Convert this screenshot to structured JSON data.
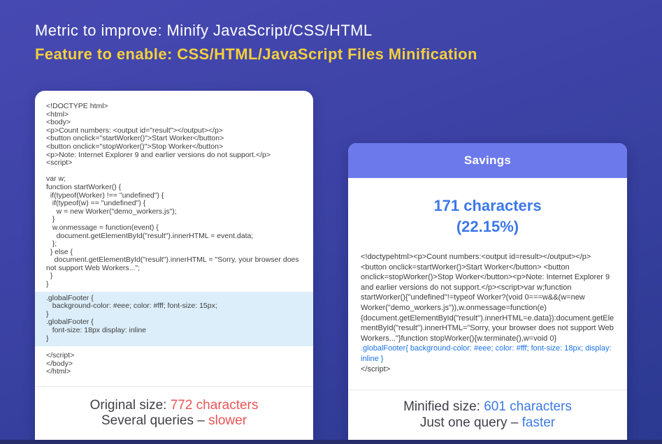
{
  "header": {
    "metric_line": "Metric to improve: Minify JavaScript/CSS/HTML",
    "feature_line": "Feature to enable: CSS/HTML/JavaScript Files Minification"
  },
  "original_card": {
    "code_main": "<!DOCTYPE html>\n<html>\n<body>\n<p>Count numbers: <output id=\"result\"></output></p>\n<button onclick=\"startWorker()\">Start Worker</button>\n<button onclick=\"stopWorker()\">Stop Worker</button>\n<p>Note: Internet Explorer 9 and earlier versions do not support.</p>\n<script>\n\nvar w;\nfunction startWorker() {\n  if(typeof(Worker) !== \"undefined\") {\n   if(typeof(w) == \"undefined\") {\n     w = new Worker(\"demo_workers.js\");\n   }\n   w.onmessage = function(event) {\n     document.getElementById(\"result\").innerHTML = event.data;\n   };\n  } else {\n    document.getElementById(\"result\").innerHTML = \"Sorry, your browser does not support Web Workers...\";\n  }\n}",
    "code_css_highlight": ".globalFooter {\n   background-color: #eee; color: #fff; font-size: 15px;\n}\n.globalFooter {\n   font-size: 18px display: inline\n}",
    "code_closing": "</script>\n</body>\n</html>",
    "footer": {
      "size_label": "Original size: ",
      "size_value": "772 characters",
      "query_label": "Several queries – ",
      "query_value": "slower"
    }
  },
  "savings_card": {
    "header_label": "Savings",
    "amount": "171 characters",
    "percent": "(22.15%)",
    "code_minified": "<!doctypehtml><p>Count numbers:<output id=result></output></p><button onclick=startWorker()>Start Worker</button> <button onclick=stopWorker()>Stop Worker</button><p>Note: Internet Explorer 9 and earlier versions do not support.</p><script>var w;function startWorker(){\"undefined\"!=typeof Worker?(void 0===w&&(w=new Worker(\"demo_workers.js\")),w.onmessage=function(e){document.getElementById(\"result\").innerHTML=e.data}):document.getElementById(\"result\").innerHTML=\"Sorry, your browser does not support Web Workers...\"}function stopWorker(){w.terminate(),w=void 0}",
    "code_css_highlight": ".globalFooter{ background-color: #eee; color: #fff; font-size: 18px; display: inline }",
    "code_closing": "</script>",
    "footer": {
      "size_label": "Minified size: ",
      "size_value": "601 characters",
      "query_label": "Just one query – ",
      "query_value": "faster"
    }
  },
  "colors": {
    "background_top": "#4749b2",
    "background_bottom": "#2b3990",
    "feature_yellow": "#f5d03c",
    "savings_header_bg": "#6c79ea",
    "savings_blue": "#3c78e8",
    "original_red": "#ea5455",
    "minified_blue": "#3d7ae5",
    "css_highlight_bg": "#dceefa",
    "css_code_blue": "#1a73e8"
  }
}
